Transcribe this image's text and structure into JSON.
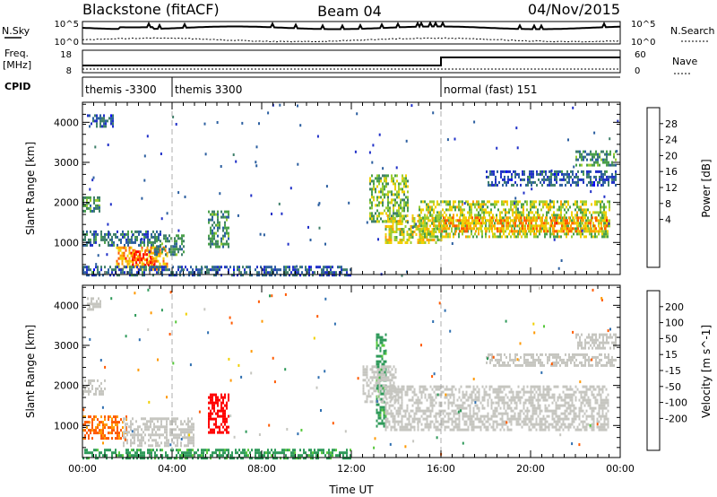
{
  "header": {
    "station": "Blackstone (fitACF)",
    "beam": "Beam 04",
    "date": "04/Nov/2015"
  },
  "strip_panels": {
    "noise": {
      "left_label": "N.Sky",
      "right_label": "N.Search",
      "left_ticks": [
        "10^5",
        "10^0"
      ],
      "right_ticks": [
        "10^5",
        "10^0"
      ]
    },
    "freq": {
      "left_label_top": "Freq.",
      "left_label_unit": "[MHz]",
      "right_label": "Nave",
      "left_ticks": [
        "18",
        "8"
      ],
      "right_ticks": [
        "60",
        "0"
      ],
      "freq_step_hour": 16.0
    },
    "cpid": {
      "label": "CPID",
      "segments": [
        {
          "label": "themis -3300",
          "start_hour": 0,
          "end_hour": 4
        },
        {
          "label": "themis 3300",
          "start_hour": 4,
          "end_hour": 16
        },
        {
          "label": "normal (fast) 151",
          "start_hour": 16,
          "end_hour": 24
        }
      ]
    }
  },
  "chart_data": [
    {
      "type": "heatmap",
      "title": "",
      "ylabel": "Slant Range [km]",
      "xlabel": "",
      "x_range_hours": [
        0,
        24
      ],
      "ylim": [
        200,
        4500
      ],
      "y_ticks": [
        1000,
        2000,
        3000,
        4000
      ],
      "x_ticks": [
        "00:00",
        "04:00",
        "08:00",
        "12:00",
        "16:00",
        "20:00",
        "00:00"
      ],
      "colorbar": {
        "label": "Power [dB]",
        "ticks": [
          "28",
          "24",
          "20",
          "16",
          "12",
          "8",
          "4"
        ],
        "colors": [
          "#0000ff",
          "#2030c8",
          "#2c5fa0",
          "#3f7f6a",
          "#4aa04a",
          "#9acd32",
          "#f0d000",
          "#ffa000",
          "#ff5a00",
          "#ff0000"
        ]
      },
      "echo_regions": [
        {
          "t": [
            0.2,
            1.4
          ],
          "r": [
            3900,
            4200
          ],
          "value": 8
        },
        {
          "t": [
            0.0,
            0.8
          ],
          "r": [
            1750,
            2150
          ],
          "value": 14
        },
        {
          "t": [
            0.0,
            3.5
          ],
          "r": [
            900,
            1300
          ],
          "value": 10
        },
        {
          "t": [
            1.5,
            3.8
          ],
          "r": [
            300,
            900
          ],
          "value": 24
        },
        {
          "t": [
            2.2,
            3.2
          ],
          "r": [
            400,
            800
          ],
          "value": 28
        },
        {
          "t": [
            3.2,
            4.5
          ],
          "r": [
            700,
            1200
          ],
          "value": 12
        },
        {
          "t": [
            5.6,
            6.5
          ],
          "r": [
            900,
            1800
          ],
          "value": 12
        },
        {
          "t": [
            0.0,
            12.0
          ],
          "r": [
            200,
            420
          ],
          "value": 8
        },
        {
          "t": [
            12.8,
            14.5
          ],
          "r": [
            1500,
            2700
          ],
          "value": 16
        },
        {
          "t": [
            13.5,
            16.0
          ],
          "r": [
            1000,
            1700
          ],
          "value": 20
        },
        {
          "t": [
            15.0,
            23.5
          ],
          "r": [
            1150,
            2050
          ],
          "value": 18
        },
        {
          "t": [
            16.0,
            23.5
          ],
          "r": [
            1250,
            1650
          ],
          "value": 24
        },
        {
          "t": [
            22.0,
            23.8
          ],
          "r": [
            2900,
            3300
          ],
          "value": 12
        },
        {
          "t": [
            18.0,
            23.8
          ],
          "r": [
            2400,
            2800
          ],
          "value": 8
        }
      ]
    },
    {
      "type": "heatmap",
      "title": "",
      "ylabel": "Slant Range [km]",
      "xlabel": "Time UT",
      "x_range_hours": [
        0,
        24
      ],
      "ylim": [
        200,
        4500
      ],
      "y_ticks": [
        1000,
        2000,
        3000,
        4000
      ],
      "x_ticks": [
        "00:00",
        "04:00",
        "08:00",
        "12:00",
        "16:00",
        "20:00",
        "00:00"
      ],
      "colorbar": {
        "label": "Velocity [m s^-1]",
        "ticks": [
          "200",
          "100",
          "50",
          "15",
          "-15",
          "-50",
          "-100",
          "-200"
        ],
        "colors": [
          "#2a3fa8",
          "#2f6fb0",
          "#2f9a5a",
          "#57c83c",
          "#c6c6c0",
          "#c6c6c0",
          "#f0d000",
          "#ff9900",
          "#ff5a00",
          "#ff0000"
        ]
      },
      "echo_regions": [
        {
          "t": [
            0.2,
            0.8
          ],
          "r": [
            3900,
            4200
          ],
          "value": 0
        },
        {
          "t": [
            0.0,
            1.0
          ],
          "r": [
            1800,
            2150
          ],
          "value": 0
        },
        {
          "t": [
            0.0,
            2.0
          ],
          "r": [
            700,
            1250
          ],
          "value": -80
        },
        {
          "t": [
            1.8,
            5.0
          ],
          "r": [
            500,
            1200
          ],
          "value": 0
        },
        {
          "t": [
            5.6,
            6.5
          ],
          "r": [
            800,
            1800
          ],
          "value": -180
        },
        {
          "t": [
            0.0,
            12.0
          ],
          "r": [
            200,
            420
          ],
          "value": 40
        },
        {
          "t": [
            13.1,
            13.5
          ],
          "r": [
            900,
            3300
          ],
          "value": 40
        },
        {
          "t": [
            12.5,
            14.0
          ],
          "r": [
            1600,
            2500
          ],
          "value": 0
        },
        {
          "t": [
            13.5,
            23.5
          ],
          "r": [
            900,
            2000
          ],
          "value": 0
        },
        {
          "t": [
            22.0,
            23.8
          ],
          "r": [
            2900,
            3300
          ],
          "value": 0
        },
        {
          "t": [
            18.0,
            23.8
          ],
          "r": [
            2500,
            2800
          ],
          "value": 0
        }
      ]
    }
  ]
}
